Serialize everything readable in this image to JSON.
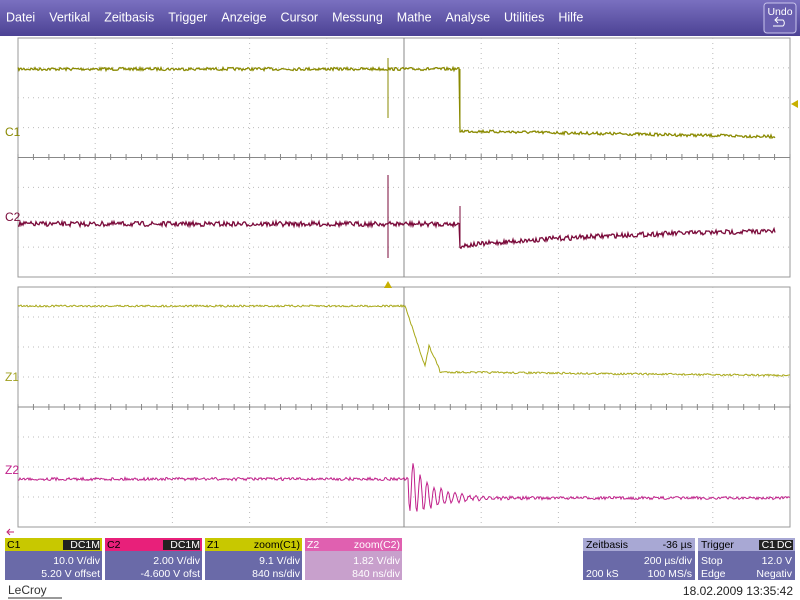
{
  "menu": [
    "Datei",
    "Vertikal",
    "Zeitbasis",
    "Trigger",
    "Anzeige",
    "Cursor",
    "Messung",
    "Mathe",
    "Analyse",
    "Utilities",
    "Hilfe"
  ],
  "undo": "Undo",
  "trace_labels": [
    "C1",
    "C2",
    "Z1",
    "Z2"
  ],
  "channels": [
    {
      "name": "C1",
      "tag": "DC1M",
      "line1": "10.0 V/div",
      "line2": "5.20 V offset"
    },
    {
      "name": "C2",
      "tag": "DC1M",
      "line1": "2.00 V/div",
      "line2": "-4.600 V ofst"
    },
    {
      "name": "Z1",
      "tag": "zoom(C1)",
      "line1": "9.1 V/div",
      "line2": "840 ns/div"
    },
    {
      "name": "Z2",
      "tag": "zoom(C2)",
      "line1": "1.82 V/div",
      "line2": "840 ns/div"
    }
  ],
  "timebase": {
    "title": "Zeitbasis",
    "delay": "-36 µs",
    "per_div": "200 µs/div",
    "samples": "200 kS",
    "rate": "100 MS/s"
  },
  "trigger": {
    "title": "Trigger",
    "source": "C1",
    "coupling": "DC",
    "mode": "Stop",
    "level": "12.0 V",
    "type": "Edge",
    "slope": "Negativ"
  },
  "brand": "LeCroy",
  "timestamp": "18.02.2009 13:35:42"
}
